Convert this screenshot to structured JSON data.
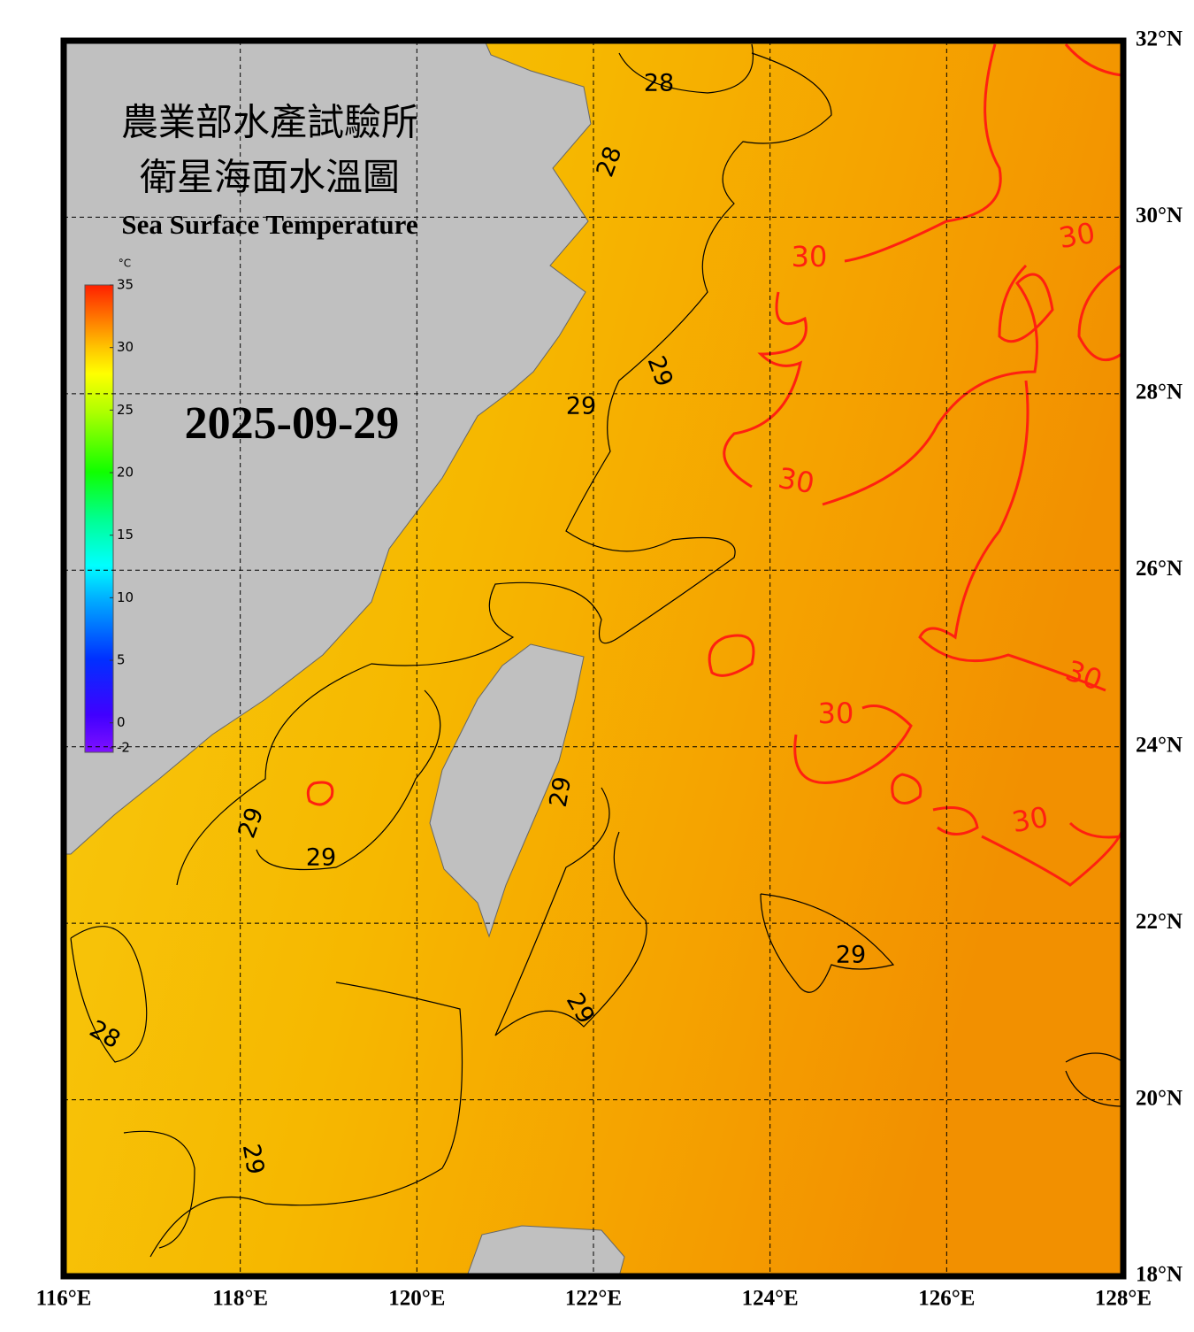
{
  "title_zh": [
    "農業部水產試驗所",
    "衛星海面水溫圖"
  ],
  "title_en": "Sea Surface Temperature",
  "date": "2025-09-29",
  "colorbar": {
    "unit": "°C",
    "range": [
      -2,
      35
    ],
    "ticks": [
      -2,
      0,
      5,
      10,
      15,
      20,
      25,
      30,
      35
    ]
  },
  "map": {
    "xlim": [
      116,
      128
    ],
    "ylim": [
      18,
      32
    ],
    "xticks": [
      {
        "value": 116,
        "label": "116°E"
      },
      {
        "value": 118,
        "label": "118°E"
      },
      {
        "value": 120,
        "label": "120°E"
      },
      {
        "value": 122,
        "label": "122°E"
      },
      {
        "value": 124,
        "label": "124°E"
      },
      {
        "value": 126,
        "label": "126°E"
      },
      {
        "value": 128,
        "label": "128°E"
      }
    ],
    "yticks": [
      {
        "value": 18,
        "label": "18°N"
      },
      {
        "value": 20,
        "label": "20°N"
      },
      {
        "value": 22,
        "label": "22°N"
      },
      {
        "value": 24,
        "label": "24°N"
      },
      {
        "value": 26,
        "label": "26°N"
      },
      {
        "value": 28,
        "label": "28°N"
      },
      {
        "value": 30,
        "label": "30°N"
      },
      {
        "value": 32,
        "label": "32°N"
      }
    ]
  },
  "contour_labels": [
    28,
    28,
    28,
    29,
    29,
    29,
    29,
    29,
    29,
    29,
    29,
    30,
    30,
    30,
    30,
    30,
    30
  ]
}
